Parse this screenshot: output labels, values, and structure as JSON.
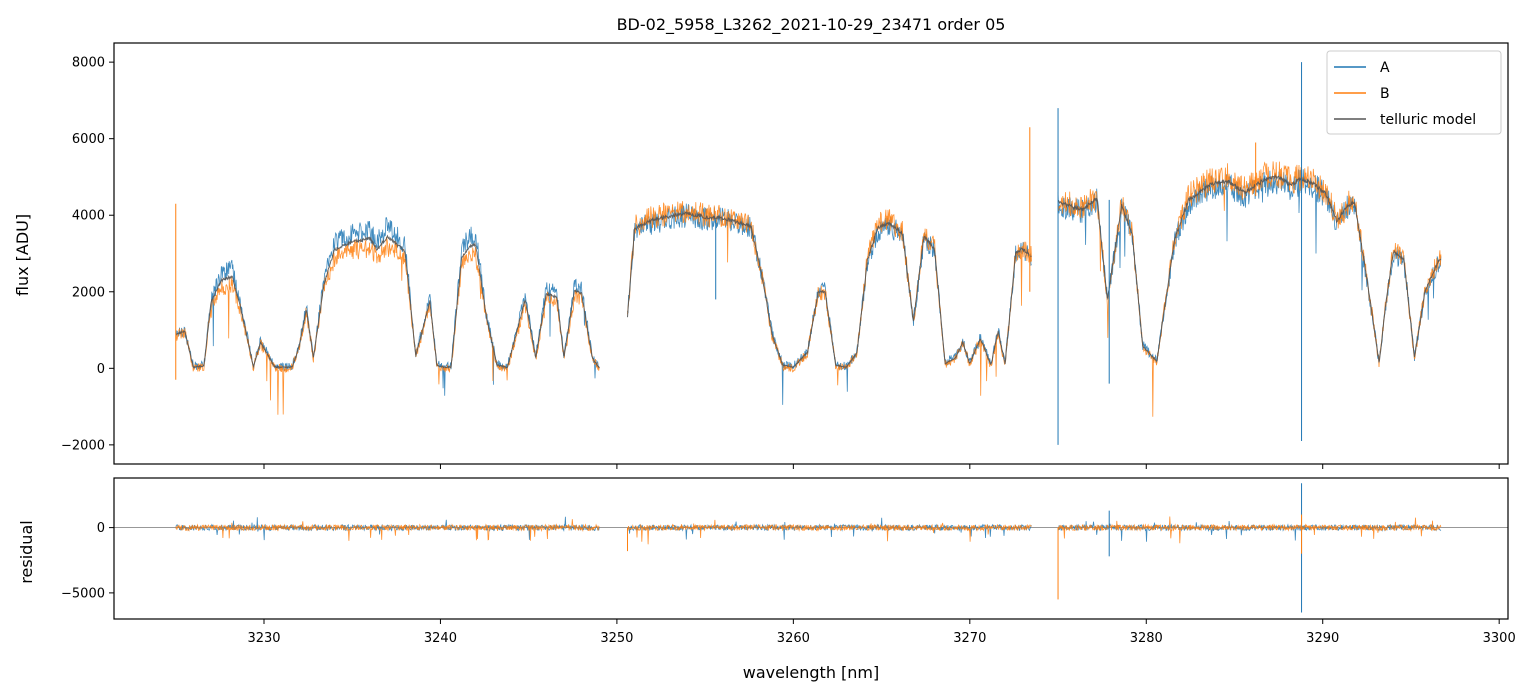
{
  "chart_data": [
    {
      "type": "line",
      "title": "BD-02_5958_L3262_2021-10-29_23471  order 05",
      "xlabel": "",
      "ylabel": "flux [ADU]",
      "xlim": [
        3221.5,
        3300.5
      ],
      "ylim": [
        -2500,
        8500
      ],
      "yticks": [
        -2000,
        0,
        2000,
        4000,
        6000,
        8000
      ],
      "xticks": [
        3230,
        3240,
        3250,
        3260,
        3270,
        3280,
        3290,
        3300
      ],
      "legend_position": "top-right",
      "legend": [
        "A",
        "B",
        "telluric model"
      ],
      "segments": [
        [
          3225.0,
          3249.0
        ],
        [
          3250.6,
          3273.5
        ],
        [
          3275.0,
          3296.7
        ]
      ],
      "series": [
        {
          "name": "A",
          "color": "#1f77b4",
          "x": [
            3225.0,
            3225.5,
            3226.0,
            3226.6,
            3227.0,
            3227.6,
            3228.2,
            3228.8,
            3229.4,
            3229.8,
            3230.6,
            3231.2,
            3231.6,
            3232.0,
            3232.4,
            3232.8,
            3233.4,
            3234.0,
            3235.0,
            3236.0,
            3236.4,
            3237.0,
            3238.0,
            3238.6,
            3239.4,
            3239.8,
            3240.2,
            3240.6,
            3241.2,
            3241.6,
            3242.0,
            3242.6,
            3243.2,
            3243.8,
            3244.8,
            3245.4,
            3246.0,
            3246.6,
            3247.0,
            3247.6,
            3248.0,
            3248.6,
            3249.0,
            3250.6,
            3251.0,
            3252.0,
            3253.0,
            3254.0,
            3255.0,
            3256.0,
            3257.0,
            3257.6,
            3258.2,
            3258.8,
            3259.4,
            3260.0,
            3260.8,
            3261.4,
            3261.8,
            3262.4,
            3263.0,
            3263.6,
            3264.2,
            3264.8,
            3265.4,
            3266.2,
            3266.8,
            3267.4,
            3268.0,
            3268.6,
            3269.2,
            3269.6,
            3270.0,
            3270.6,
            3271.2,
            3271.6,
            3272.0,
            3272.6,
            3273.0,
            3273.5,
            3275.0,
            3275.6,
            3276.4,
            3277.2,
            3277.8,
            3278.6,
            3279.2,
            3279.8,
            3280.6,
            3281.6,
            3282.4,
            3283.6,
            3284.6,
            3285.6,
            3286.6,
            3287.4,
            3288.2,
            3288.8,
            3289.4,
            3290.2,
            3290.8,
            3291.4,
            3291.8,
            3292.6,
            3293.2,
            3293.6,
            3294.0,
            3294.6,
            3295.2,
            3295.8,
            3296.6
          ],
          "y": [
            900,
            1000,
            50,
            80,
            1800,
            2500,
            2600,
            1400,
            50,
            700,
            60,
            30,
            60,
            600,
            1600,
            300,
            2300,
            3300,
            3500,
            3600,
            3300,
            3700,
            3200,
            350,
            1800,
            100,
            50,
            50,
            3100,
            3400,
            3500,
            1400,
            100,
            50,
            1900,
            300,
            2100,
            2000,
            300,
            2200,
            2100,
            300,
            20,
            1400,
            3600,
            3800,
            3900,
            4000,
            3900,
            3900,
            3800,
            3700,
            2500,
            900,
            100,
            50,
            450,
            2000,
            2050,
            100,
            50,
            400,
            2800,
            3600,
            3700,
            3500,
            1200,
            3400,
            3100,
            150,
            300,
            700,
            150,
            800,
            100,
            1000,
            150,
            3000,
            3100,
            2900,
            4300,
            4200,
            4100,
            4400,
            1800,
            4200,
            3500,
            600,
            200,
            3300,
            4300,
            4700,
            4800,
            4500,
            4800,
            4900,
            4700,
            4900,
            4800,
            4500,
            3800,
            4200,
            4300,
            2000,
            150,
            1800,
            3000,
            2800,
            300,
            2000,
            2800
          ]
        },
        {
          "name": "B",
          "color": "#ff7f0e",
          "x": [
            3225.0,
            3225.5,
            3226.0,
            3226.6,
            3227.0,
            3227.6,
            3228.2,
            3228.8,
            3229.4,
            3229.8,
            3230.6,
            3231.2,
            3231.6,
            3232.0,
            3232.4,
            3232.8,
            3233.4,
            3234.0,
            3235.0,
            3236.0,
            3236.4,
            3237.0,
            3238.0,
            3238.6,
            3239.4,
            3239.8,
            3240.2,
            3240.6,
            3241.2,
            3241.6,
            3242.0,
            3242.6,
            3243.2,
            3243.8,
            3244.8,
            3245.4,
            3246.0,
            3246.6,
            3247.0,
            3247.6,
            3248.0,
            3248.6,
            3249.0,
            3250.6,
            3251.0,
            3252.0,
            3253.0,
            3254.0,
            3255.0,
            3256.0,
            3257.0,
            3257.6,
            3258.2,
            3258.8,
            3259.4,
            3260.0,
            3260.8,
            3261.4,
            3261.8,
            3262.4,
            3263.0,
            3263.6,
            3264.2,
            3264.8,
            3265.4,
            3266.2,
            3266.8,
            3267.4,
            3268.0,
            3268.6,
            3269.2,
            3269.6,
            3270.0,
            3270.6,
            3271.2,
            3271.6,
            3272.0,
            3272.6,
            3273.0,
            3273.5,
            3275.0,
            3275.6,
            3276.4,
            3277.2,
            3277.8,
            3278.6,
            3279.2,
            3279.8,
            3280.6,
            3281.6,
            3282.4,
            3283.6,
            3284.6,
            3285.6,
            3286.6,
            3287.4,
            3288.2,
            3288.8,
            3289.4,
            3290.2,
            3290.8,
            3291.4,
            3291.8,
            3292.6,
            3293.2,
            3293.6,
            3294.0,
            3294.6,
            3295.2,
            3295.8,
            3296.6
          ],
          "y": [
            850,
            950,
            0,
            40,
            1700,
            2100,
            2200,
            1300,
            0,
            650,
            20,
            0,
            30,
            550,
            1500,
            250,
            2100,
            2900,
            3100,
            3150,
            2900,
            3200,
            2900,
            300,
            1700,
            50,
            0,
            0,
            2700,
            2950,
            3000,
            1300,
            50,
            0,
            1700,
            250,
            1800,
            1700,
            250,
            1900,
            1800,
            250,
            0,
            1300,
            3700,
            3950,
            4050,
            4100,
            4000,
            3950,
            3800,
            3700,
            2450,
            850,
            50,
            0,
            400,
            1950,
            2000,
            50,
            0,
            400,
            2900,
            3750,
            3900,
            3550,
            1200,
            3500,
            3150,
            100,
            250,
            650,
            100,
            750,
            50,
            950,
            100,
            3050,
            3150,
            2950,
            4400,
            4300,
            4200,
            4500,
            1750,
            4300,
            3550,
            550,
            150,
            3400,
            4500,
            4900,
            5000,
            4700,
            5000,
            5100,
            4900,
            5000,
            4900,
            4600,
            3900,
            4300,
            4400,
            2100,
            100,
            1800,
            3100,
            2900,
            250,
            2050,
            2900
          ]
        },
        {
          "name": "telluric model",
          "color": "#555555",
          "x": [
            3225.0,
            3225.5,
            3226.0,
            3226.6,
            3227.0,
            3227.6,
            3228.2,
            3228.8,
            3229.4,
            3229.8,
            3230.6,
            3231.2,
            3231.6,
            3232.0,
            3232.4,
            3232.8,
            3233.4,
            3234.0,
            3235.0,
            3236.0,
            3236.4,
            3237.0,
            3238.0,
            3238.6,
            3239.4,
            3239.8,
            3240.2,
            3240.6,
            3241.2,
            3241.6,
            3242.0,
            3242.6,
            3243.2,
            3243.8,
            3244.8,
            3245.4,
            3246.0,
            3246.6,
            3247.0,
            3247.6,
            3248.0,
            3248.6,
            3249.0,
            3250.6,
            3251.0,
            3252.0,
            3253.0,
            3254.0,
            3255.0,
            3256.0,
            3257.0,
            3257.6,
            3258.2,
            3258.8,
            3259.4,
            3260.0,
            3260.8,
            3261.4,
            3261.8,
            3262.4,
            3263.0,
            3263.6,
            3264.2,
            3264.8,
            3265.4,
            3266.2,
            3266.8,
            3267.4,
            3268.0,
            3268.6,
            3269.2,
            3269.6,
            3270.0,
            3270.6,
            3271.2,
            3271.6,
            3272.0,
            3272.6,
            3273.0,
            3273.5,
            3275.0,
            3275.6,
            3276.4,
            3277.2,
            3277.8,
            3278.6,
            3279.2,
            3279.8,
            3280.6,
            3281.6,
            3282.4,
            3283.6,
            3284.6,
            3285.6,
            3286.6,
            3287.4,
            3288.2,
            3288.8,
            3289.4,
            3290.2,
            3290.8,
            3291.4,
            3291.8,
            3292.6,
            3293.2,
            3293.6,
            3294.0,
            3294.6,
            3295.2,
            3295.8,
            3296.6
          ],
          "y": [
            880,
            980,
            30,
            60,
            1750,
            2300,
            2400,
            1350,
            30,
            680,
            40,
            20,
            40,
            580,
            1550,
            280,
            2200,
            3100,
            3300,
            3400,
            3100,
            3450,
            3050,
            330,
            1750,
            80,
            30,
            30,
            2900,
            3150,
            3250,
            1350,
            80,
            30,
            1800,
            280,
            1950,
            1850,
            280,
            2050,
            1950,
            280,
            10,
            1350,
            3650,
            3870,
            3970,
            4050,
            3950,
            3920,
            3800,
            3700,
            2480,
            880,
            80,
            30,
            420,
            1980,
            2020,
            80,
            30,
            400,
            2850,
            3680,
            3800,
            3520,
            1200,
            3450,
            3120,
            120,
            280,
            680,
            120,
            780,
            80,
            980,
            120,
            3020,
            3120,
            2920,
            4350,
            4250,
            4150,
            4450,
            1780,
            4250,
            3520,
            580,
            180,
            3350,
            4400,
            4800,
            4900,
            4600,
            4900,
            5000,
            4800,
            4950,
            4850,
            4550,
            3850,
            4250,
            4350,
            2050,
            120,
            1800,
            3050,
            2850,
            280,
            2020,
            2850
          ]
        }
      ],
      "spikes": [
        {
          "series": "A",
          "x": 3275.0,
          "y_top": 6800,
          "y_bottom": -2000
        },
        {
          "series": "A",
          "x": 3288.8,
          "y_top": 8000,
          "y_bottom": -1900
        },
        {
          "series": "B",
          "x": 3225.0,
          "y_top": 4300,
          "y_bottom": -300
        },
        {
          "series": "B",
          "x": 3273.4,
          "y_top": 6300,
          "y_bottom": 2000
        },
        {
          "series": "B",
          "x": 3286.2,
          "y_top": 5900,
          "y_bottom": 4500
        },
        {
          "series": "A",
          "x": 3277.9,
          "y_top": 4400,
          "y_bottom": -400
        },
        {
          "series": "A",
          "x": 3255.6,
          "y_top": 3900,
          "y_bottom": 1800
        }
      ]
    },
    {
      "type": "line",
      "title": "",
      "xlabel": "wavelength [nm]",
      "ylabel": "residual",
      "xlim": [
        3221.5,
        3300.5
      ],
      "ylim": [
        -7000,
        3800
      ],
      "yticks": [
        -5000,
        0
      ],
      "xticks": [
        3230,
        3240,
        3250,
        3260,
        3270,
        3280,
        3290,
        3300
      ],
      "zero_line": true,
      "spikes": [
        {
          "series": "B",
          "x": 3275.0,
          "y_top": 0,
          "y_bottom": -5500
        },
        {
          "series": "A",
          "x": 3288.8,
          "y_top": 3400,
          "y_bottom": -6500
        },
        {
          "series": "B",
          "x": 3250.6,
          "y_top": 0,
          "y_bottom": -1800
        },
        {
          "series": "A",
          "x": 3277.9,
          "y_top": 1300,
          "y_bottom": -2200
        },
        {
          "series": "B",
          "x": 3288.8,
          "y_top": 1000,
          "y_bottom": -2000
        }
      ]
    }
  ]
}
